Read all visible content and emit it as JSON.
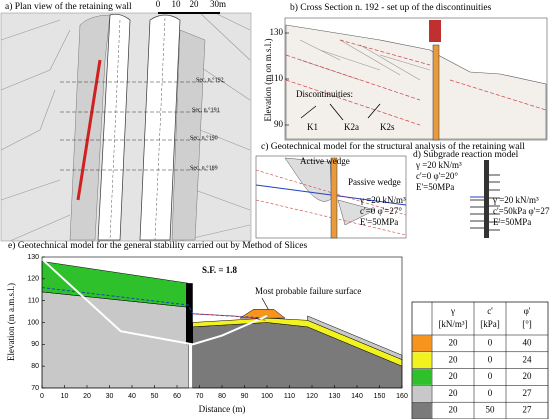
{
  "panel_a": {
    "title": "a) Plan view of the retaining wall",
    "scale": [
      "0",
      "10",
      "20",
      "30m"
    ],
    "sections": [
      "Sec. n.°192",
      "Sec. n.°191",
      "Sec. n.°190",
      "Sec. n.°189"
    ]
  },
  "panel_b": {
    "title": "b)  Cross Section n. 192 - set up of the discontinuities",
    "y_label": "Elevation (m on m.s.l.)",
    "yticks": [
      130,
      110,
      90
    ],
    "discontinuities_label": "Discontinuities:",
    "discontinuities": [
      "K1",
      "K2a",
      "K2s"
    ]
  },
  "panel_c": {
    "title": "c)   Geotechnical model for the structural analysis of the retaining wall",
    "active": "Active wedge",
    "passive": "Passive wedge",
    "soil": [
      "γ =20 kN/m³",
      "c'=0 φ'=27°",
      "E'=50MPa"
    ]
  },
  "panel_d": {
    "title": "d) Subgrade reaction model",
    "upper": [
      "γ =20 kN/m³",
      "c'=0 φ'=20°",
      "E'=50MPa"
    ],
    "lower": [
      "γ =20 kN/m³",
      "c'=50kPa φ'=27°",
      "E'=50MPa"
    ]
  },
  "panel_e": {
    "title": "e) Geotechnical model for the general stability carried out by Method of Slices",
    "y_label": "Elevation (m a.m.s.l.)",
    "x_label": "Distance (m)",
    "yticks": [
      70,
      80,
      90,
      100,
      110,
      120,
      130
    ],
    "xticks": [
      0,
      10,
      20,
      30,
      40,
      50,
      60,
      70,
      80,
      90,
      100,
      110,
      120,
      130,
      140,
      150,
      160
    ],
    "safety_factor": "S.F. = 1.8",
    "failure_label": "Most probable failure surface",
    "table": {
      "header": [
        "γ",
        "c'",
        "φ'"
      ],
      "units": [
        "[kN/m³]",
        "[kPa]",
        "[°]"
      ],
      "rows": [
        {
          "color": "#f7941d",
          "values": [
            20,
            0,
            40
          ]
        },
        {
          "color": "#f2f21e",
          "values": [
            20,
            0,
            24
          ]
        },
        {
          "color": "#2fc12b",
          "values": [
            20,
            0,
            20
          ]
        },
        {
          "color": "#c8c8c8",
          "values": [
            20,
            0,
            27
          ]
        },
        {
          "color": "#7a7a7a",
          "values": [
            20,
            50,
            27
          ]
        }
      ]
    }
  }
}
